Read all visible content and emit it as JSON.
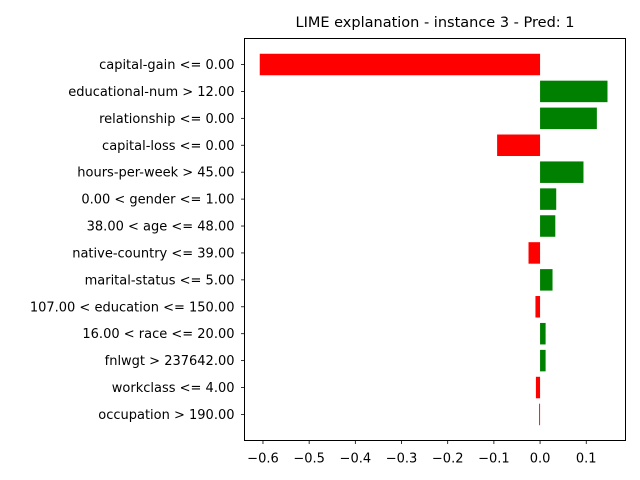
{
  "chart_data": {
    "type": "bar",
    "orientation": "horizontal",
    "title": "LIME explanation - instance 3 - Pred: 1",
    "xlabel": "",
    "ylabel": "",
    "xlim": [
      -0.64,
      0.185
    ],
    "xticks": [
      -0.6,
      -0.5,
      -0.4,
      -0.3,
      -0.2,
      -0.1,
      0.0,
      0.1
    ],
    "xtick_labels": [
      "−0.6",
      "−0.5",
      "−0.4",
      "−0.3",
      "−0.2",
      "−0.1",
      "0.0",
      "0.1"
    ],
    "grid": false,
    "colors": {
      "positive": "#008000",
      "negative": "#ff0000"
    },
    "categories": [
      "capital-gain <= 0.00",
      "educational-num > 12.00",
      "relationship <= 0.00",
      "capital-loss <= 0.00",
      "hours-per-week > 45.00",
      "0.00 < gender <= 1.00",
      "38.00 < age <= 48.00",
      "native-country <= 39.00",
      "marital-status <= 5.00",
      "107.00 < education <= 150.00",
      "16.00 < race <= 20.00",
      "fnlwgt > 237642.00",
      "workclass <= 4.00",
      "occupation > 190.00"
    ],
    "values": [
      -0.607,
      0.146,
      0.123,
      -0.093,
      0.094,
      0.035,
      0.033,
      -0.025,
      0.027,
      -0.01,
      0.012,
      0.012,
      -0.009,
      -0.002
    ]
  }
}
